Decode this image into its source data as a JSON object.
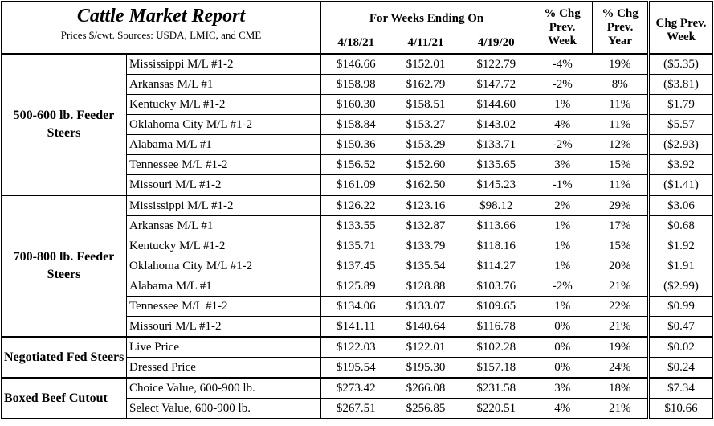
{
  "title": "Cattle Market Report",
  "subtitle": "Prices $/cwt. Sources: USDA, LMIC, and CME",
  "headers": {
    "weeks_ending": "For Weeks Ending On",
    "col1": "4/18/21",
    "col2": "4/11/21",
    "col3": "4/19/20",
    "pct_week": [
      "% Chg",
      "Prev.",
      "Week"
    ],
    "pct_year": [
      "% Chg",
      "Prev.",
      "Year"
    ],
    "chg_week": [
      "Chg Prev.",
      "Week"
    ]
  },
  "groups": [
    {
      "name": "500-600 lb. Feeder Steers",
      "rows": [
        {
          "label": "Mississippi M/L #1-2",
          "v1": "$146.66",
          "v2": "$152.01",
          "v3": "$122.79",
          "pw": "-4%",
          "py": "19%",
          "cw": "($5.35)"
        },
        {
          "label": "Arkansas M/L #1",
          "v1": "$158.98",
          "v2": "$162.79",
          "v3": "$147.72",
          "pw": "-2%",
          "py": "8%",
          "cw": "($3.81)"
        },
        {
          "label": "Kentucky M/L #1-2",
          "v1": "$160.30",
          "v2": "$158.51",
          "v3": "$144.60",
          "pw": "1%",
          "py": "11%",
          "cw": "$1.79"
        },
        {
          "label": "Oklahoma City M/L #1-2",
          "v1": "$158.84",
          "v2": "$153.27",
          "v3": "$143.02",
          "pw": "4%",
          "py": "11%",
          "cw": "$5.57"
        },
        {
          "label": "Alabama M/L #1",
          "v1": "$150.36",
          "v2": "$153.29",
          "v3": "$133.71",
          "pw": "-2%",
          "py": "12%",
          "cw": "($2.93)"
        },
        {
          "label": "Tennessee M/L #1-2",
          "v1": "$156.52",
          "v2": "$152.60",
          "v3": "$135.65",
          "pw": "3%",
          "py": "15%",
          "cw": "$3.92"
        },
        {
          "label": "Missouri M/L #1-2",
          "v1": "$161.09",
          "v2": "$162.50",
          "v3": "$145.23",
          "pw": "-1%",
          "py": "11%",
          "cw": "($1.41)"
        }
      ]
    },
    {
      "name": "700-800 lb. Feeder Steers",
      "rows": [
        {
          "label": "Mississippi M/L #1-2",
          "v1": "$126.22",
          "v2": "$123.16",
          "v3": "$98.12",
          "pw": "2%",
          "py": "29%",
          "cw": "$3.06"
        },
        {
          "label": "Arkansas M/L #1",
          "v1": "$133.55",
          "v2": "$132.87",
          "v3": "$113.66",
          "pw": "1%",
          "py": "17%",
          "cw": "$0.68"
        },
        {
          "label": "Kentucky M/L #1-2",
          "v1": "$135.71",
          "v2": "$133.79",
          "v3": "$118.16",
          "pw": "1%",
          "py": "15%",
          "cw": "$1.92"
        },
        {
          "label": "Oklahoma City M/L #1-2",
          "v1": "$137.45",
          "v2": "$135.54",
          "v3": "$114.27",
          "pw": "1%",
          "py": "20%",
          "cw": "$1.91"
        },
        {
          "label": "Alabama M/L #1",
          "v1": "$125.89",
          "v2": "$128.88",
          "v3": "$103.76",
          "pw": "-2%",
          "py": "21%",
          "cw": "($2.99)"
        },
        {
          "label": "Tennessee M/L #1-2",
          "v1": "$134.06",
          "v2": "$133.07",
          "v3": "$109.65",
          "pw": "1%",
          "py": "22%",
          "cw": "$0.99"
        },
        {
          "label": "Missouri M/L #1-2",
          "v1": "$141.11",
          "v2": "$140.64",
          "v3": "$116.78",
          "pw": "0%",
          "py": "21%",
          "cw": "$0.47"
        }
      ]
    },
    {
      "name": "Negotiated Fed Steers",
      "rows": [
        {
          "label": "Live Price",
          "v1": "$122.03",
          "v2": "$122.01",
          "v3": "$102.28",
          "pw": "0%",
          "py": "19%",
          "cw": "$0.02"
        },
        {
          "label": "Dressed Price",
          "v1": "$195.54",
          "v2": "$195.30",
          "v3": "$157.18",
          "pw": "0%",
          "py": "24%",
          "cw": "$0.24"
        }
      ]
    },
    {
      "name": "Boxed Beef Cutout",
      "rows": [
        {
          "label": "Choice Value, 600-900 lb.",
          "v1": "$273.42",
          "v2": "$266.08",
          "v3": "$231.58",
          "pw": "3%",
          "py": "18%",
          "cw": "$7.34"
        },
        {
          "label": "Select Value, 600-900 lb.",
          "v1": "$267.51",
          "v2": "$256.85",
          "v3": "$220.51",
          "pw": "4%",
          "py": "21%",
          "cw": "$10.66"
        }
      ]
    }
  ]
}
